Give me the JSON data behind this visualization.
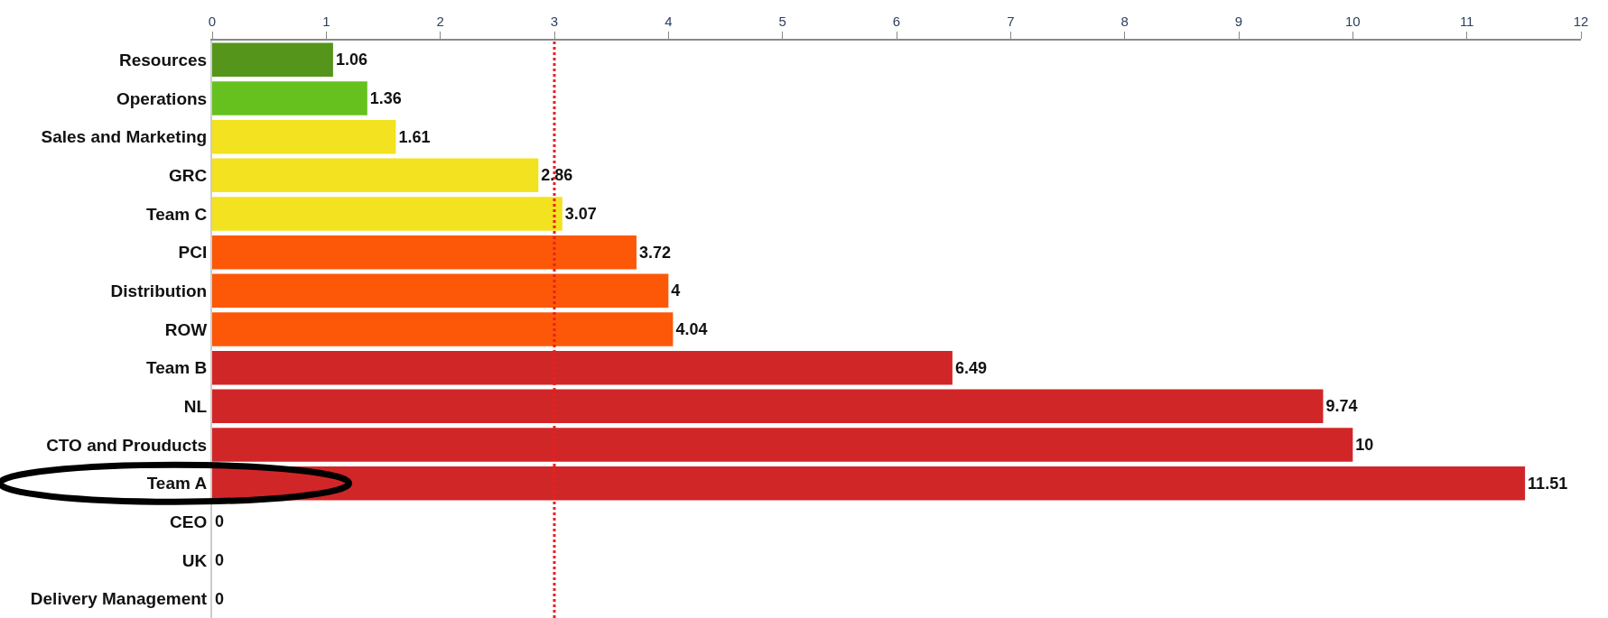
{
  "chart_data": {
    "type": "bar",
    "orientation": "horizontal",
    "categories": [
      "Resources",
      "Operations",
      "Sales and Marketing",
      "GRC",
      "Team C",
      "PCI",
      "Distribution",
      "ROW",
      "Team B",
      "NL",
      "CTO and Prouducts",
      "Team A",
      "CEO",
      "UK",
      "Delivery Management"
    ],
    "values": [
      1.06,
      1.36,
      1.61,
      2.86,
      3.07,
      3.72,
      4,
      4.04,
      6.49,
      9.74,
      10,
      11.51,
      0,
      0,
      0
    ],
    "colors": [
      "#55951c",
      "#66c11e",
      "#f3e21f",
      "#f3e21f",
      "#f3e21f",
      "#fd5808",
      "#fd5808",
      "#fd5808",
      "#d12628",
      "#d12628",
      "#d12628",
      "#d12628",
      "#d12628",
      "#d12628",
      "#d12628"
    ],
    "data_labels": true,
    "xlim": [
      0,
      12
    ],
    "xticks": [
      0,
      1,
      2,
      3,
      4,
      5,
      6,
      7,
      8,
      9,
      10,
      11,
      12
    ],
    "ref_lines": [
      {
        "axis": "x",
        "value": 3,
        "color": "#e8211d",
        "line_style": "dotted"
      }
    ]
  }
}
